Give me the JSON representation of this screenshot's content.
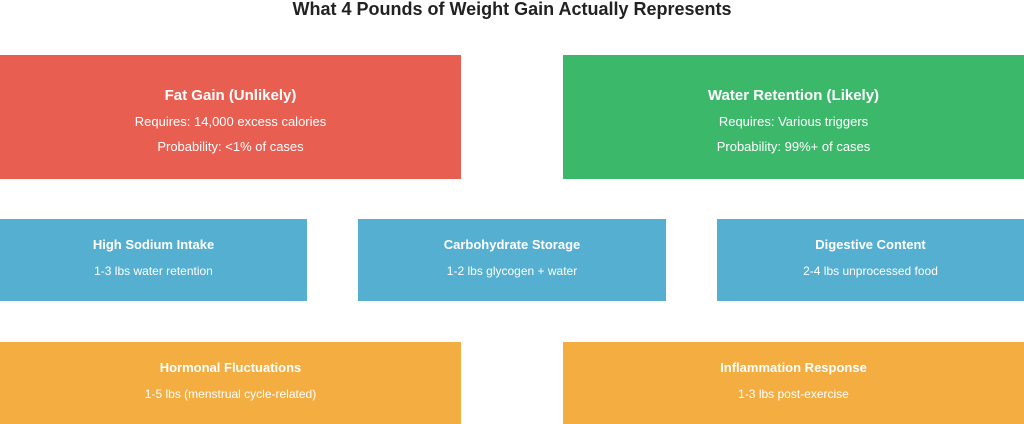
{
  "title": "What 4 Pounds of Weight Gain Actually Represents",
  "colors": {
    "fat": "#e85f52",
    "water": "#3cb86b",
    "factor": "#55afd1",
    "secondary": "#f3ad41"
  },
  "primary": {
    "fat": {
      "heading": "Fat Gain (Unlikely)",
      "requires": "Requires: 14,000 excess calories",
      "probability": "Probability: <1% of cases"
    },
    "water": {
      "heading": "Water Retention (Likely)",
      "requires": "Requires: Various triggers",
      "probability": "Probability: 99%+ of cases"
    }
  },
  "factors": [
    {
      "heading": "High Sodium Intake",
      "detail": "1-3 lbs water retention"
    },
    {
      "heading": "Carbohydrate Storage",
      "detail": "1-2 lbs glycogen + water"
    },
    {
      "heading": "Digestive Content",
      "detail": "2-4 lbs unprocessed food"
    }
  ],
  "secondary": [
    {
      "heading": "Hormonal Fluctuations",
      "detail": "1-5 lbs (menstrual cycle-related)"
    },
    {
      "heading": "Inflammation Response",
      "detail": "1-3 lbs post-exercise"
    }
  ]
}
